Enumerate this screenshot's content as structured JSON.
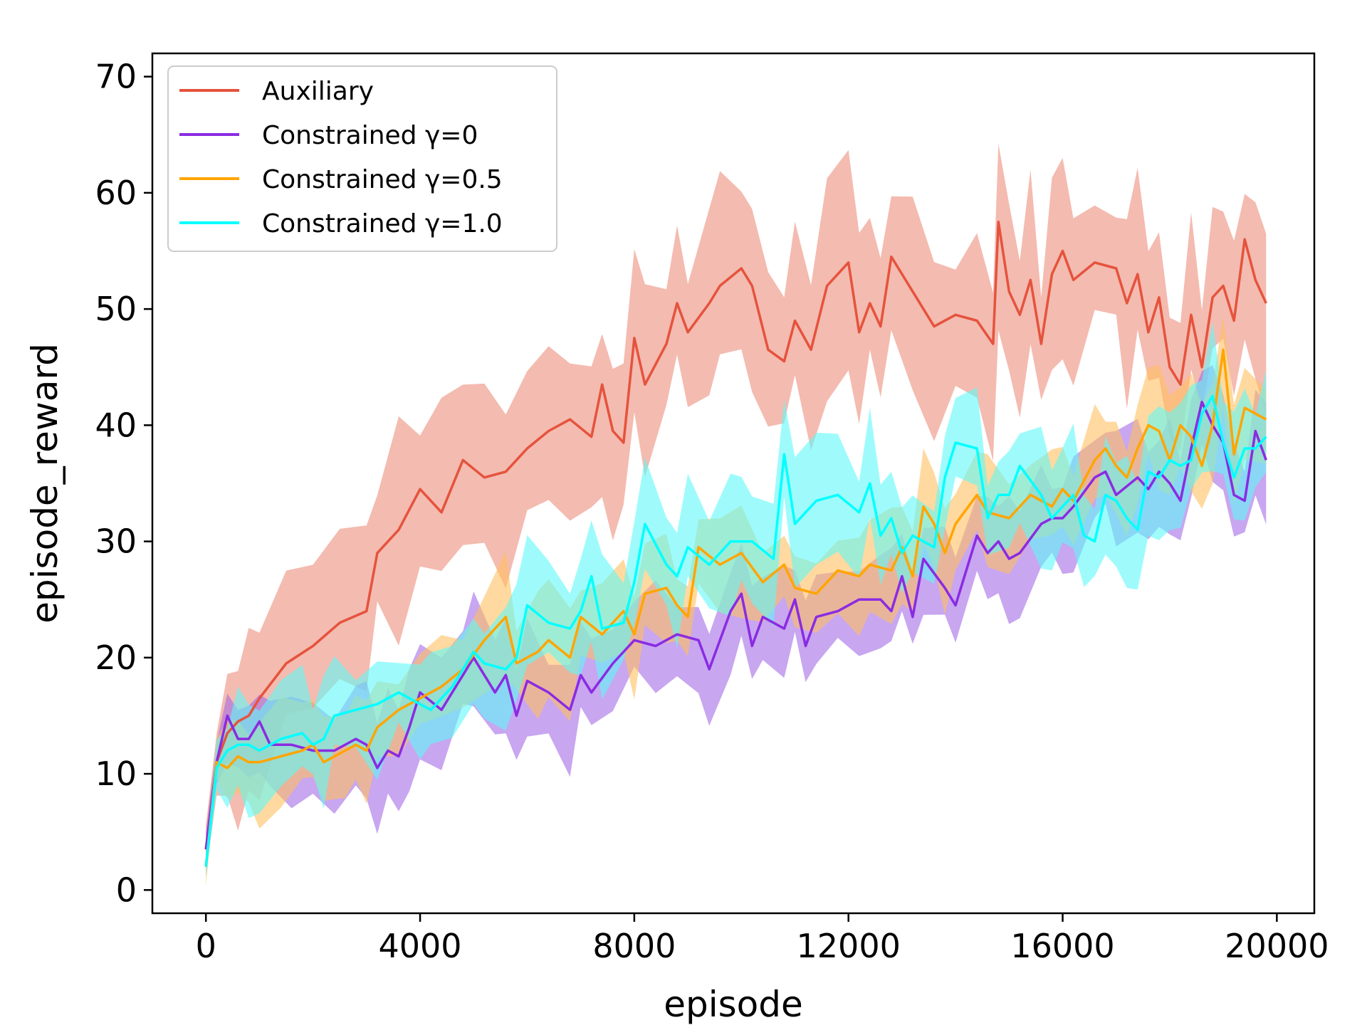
{
  "chart_data": {
    "type": "line",
    "title": "",
    "xlabel": "episode",
    "ylabel": "episode_reward",
    "xlim": [
      -1000,
      20700
    ],
    "ylim": [
      -2,
      72
    ],
    "xticks": [
      0,
      4000,
      8000,
      12000,
      16000,
      20000
    ],
    "yticks": [
      0,
      10,
      20,
      30,
      40,
      50,
      60,
      70
    ],
    "grid": false,
    "legend_position": "top-left",
    "series": [
      {
        "name": "Auxiliary",
        "color": "#e5533d",
        "band_color": "#ec8e7c",
        "anchors": [
          [
            0,
            3.5
          ],
          [
            200,
            11
          ],
          [
            400,
            13.5
          ],
          [
            600,
            14.5
          ],
          [
            800,
            15
          ],
          [
            1000,
            16.5
          ],
          [
            1500,
            19.5
          ],
          [
            2000,
            21
          ],
          [
            2500,
            23
          ],
          [
            3000,
            24
          ],
          [
            3200,
            29
          ],
          [
            3600,
            31
          ],
          [
            4000,
            34.5
          ],
          [
            4400,
            32.5
          ],
          [
            4800,
            37
          ],
          [
            5200,
            35.5
          ],
          [
            5600,
            36
          ],
          [
            6000,
            38
          ],
          [
            6400,
            39.5
          ],
          [
            6800,
            40.5
          ],
          [
            7200,
            39
          ],
          [
            7400,
            43.5
          ],
          [
            7600,
            39.5
          ],
          [
            7800,
            38.5
          ],
          [
            8000,
            47.5
          ],
          [
            8200,
            43.5
          ],
          [
            8600,
            47
          ],
          [
            8800,
            50.5
          ],
          [
            9000,
            48
          ],
          [
            9400,
            50.5
          ],
          [
            9600,
            52
          ],
          [
            10000,
            53.5
          ],
          [
            10200,
            52
          ],
          [
            10500,
            46.5
          ],
          [
            10800,
            45.5
          ],
          [
            11000,
            49
          ],
          [
            11300,
            46.5
          ],
          [
            11600,
            52
          ],
          [
            12000,
            54
          ],
          [
            12200,
            48
          ],
          [
            12400,
            50.5
          ],
          [
            12600,
            48.5
          ],
          [
            12800,
            54.5
          ],
          [
            13200,
            51.5
          ],
          [
            13600,
            48.5
          ],
          [
            14000,
            49.5
          ],
          [
            14400,
            49
          ],
          [
            14700,
            47
          ],
          [
            14800,
            57.5
          ],
          [
            15000,
            51.5
          ],
          [
            15200,
            49.5
          ],
          [
            15400,
            52.5
          ],
          [
            15600,
            47
          ],
          [
            15800,
            53
          ],
          [
            16000,
            55
          ],
          [
            16200,
            52.5
          ],
          [
            16600,
            54
          ],
          [
            17000,
            53.5
          ],
          [
            17200,
            50.5
          ],
          [
            17400,
            53
          ],
          [
            17600,
            48
          ],
          [
            17800,
            51
          ],
          [
            18000,
            45
          ],
          [
            18200,
            43.5
          ],
          [
            18400,
            49.5
          ],
          [
            18600,
            45
          ],
          [
            18800,
            51
          ],
          [
            19000,
            52
          ],
          [
            19200,
            49
          ],
          [
            19400,
            56
          ],
          [
            19600,
            52.5
          ],
          [
            19800,
            50.5
          ]
        ],
        "band": 7
      },
      {
        "name": "Constrained γ=0",
        "color": "#8a2be2",
        "band_color": "#a46be6",
        "anchors": [
          [
            0,
            3.5
          ],
          [
            200,
            11
          ],
          [
            400,
            15
          ],
          [
            600,
            13
          ],
          [
            800,
            13
          ],
          [
            1000,
            14.5
          ],
          [
            1200,
            12.5
          ],
          [
            1600,
            12.5
          ],
          [
            2000,
            12
          ],
          [
            2400,
            12
          ],
          [
            2800,
            13
          ],
          [
            3000,
            12.5
          ],
          [
            3200,
            10.5
          ],
          [
            3400,
            12
          ],
          [
            3600,
            11.5
          ],
          [
            3800,
            14
          ],
          [
            4000,
            17
          ],
          [
            4400,
            15.5
          ],
          [
            4800,
            18.5
          ],
          [
            5000,
            20
          ],
          [
            5400,
            17
          ],
          [
            5600,
            18.5
          ],
          [
            5800,
            15
          ],
          [
            6000,
            18
          ],
          [
            6400,
            17
          ],
          [
            6800,
            15.5
          ],
          [
            7000,
            18.5
          ],
          [
            7200,
            17
          ],
          [
            7600,
            19.5
          ],
          [
            8000,
            21.5
          ],
          [
            8400,
            21
          ],
          [
            8800,
            22
          ],
          [
            9200,
            21.5
          ],
          [
            9400,
            19
          ],
          [
            9800,
            24
          ],
          [
            10000,
            25.5
          ],
          [
            10200,
            21
          ],
          [
            10400,
            23.5
          ],
          [
            10800,
            22.5
          ],
          [
            11000,
            25
          ],
          [
            11200,
            21
          ],
          [
            11400,
            23.5
          ],
          [
            11800,
            24
          ],
          [
            12200,
            25
          ],
          [
            12600,
            25
          ],
          [
            12800,
            24
          ],
          [
            13000,
            27
          ],
          [
            13200,
            23.5
          ],
          [
            13400,
            28.5
          ],
          [
            13800,
            26
          ],
          [
            14000,
            24.5
          ],
          [
            14400,
            30.5
          ],
          [
            14600,
            29
          ],
          [
            14800,
            30
          ],
          [
            15000,
            28.5
          ],
          [
            15200,
            29
          ],
          [
            15600,
            31.5
          ],
          [
            15800,
            32
          ],
          [
            16000,
            32
          ],
          [
            16200,
            33
          ],
          [
            16600,
            35.5
          ],
          [
            16800,
            36
          ],
          [
            17000,
            34
          ],
          [
            17400,
            35.5
          ],
          [
            17600,
            34.5
          ],
          [
            17800,
            36
          ],
          [
            18000,
            35
          ],
          [
            18200,
            33.5
          ],
          [
            18400,
            38
          ],
          [
            18600,
            42
          ],
          [
            18800,
            40
          ],
          [
            19000,
            38.5
          ],
          [
            19200,
            34
          ],
          [
            19400,
            33.5
          ],
          [
            19600,
            39.5
          ],
          [
            19800,
            37
          ]
        ],
        "band": 4
      },
      {
        "name": "Constrained γ=0.5",
        "color": "#ffa500",
        "band_color": "#ffc060",
        "anchors": [
          [
            0,
            2
          ],
          [
            200,
            11
          ],
          [
            400,
            10.5
          ],
          [
            600,
            11.5
          ],
          [
            800,
            11
          ],
          [
            1000,
            11
          ],
          [
            1400,
            11.5
          ],
          [
            1800,
            12
          ],
          [
            2000,
            12.5
          ],
          [
            2200,
            11
          ],
          [
            2600,
            12
          ],
          [
            2800,
            12.5
          ],
          [
            3000,
            12
          ],
          [
            3200,
            14
          ],
          [
            3600,
            15.5
          ],
          [
            4000,
            16.5
          ],
          [
            4400,
            17.5
          ],
          [
            4800,
            19
          ],
          [
            5200,
            21.5
          ],
          [
            5600,
            23.5
          ],
          [
            5800,
            19.5
          ],
          [
            6200,
            20.5
          ],
          [
            6400,
            21.5
          ],
          [
            6800,
            20
          ],
          [
            7000,
            23.5
          ],
          [
            7400,
            22
          ],
          [
            7800,
            24
          ],
          [
            8000,
            22
          ],
          [
            8200,
            25.5
          ],
          [
            8600,
            26
          ],
          [
            8800,
            24.5
          ],
          [
            9000,
            23.5
          ],
          [
            9200,
            29.5
          ],
          [
            9600,
            28
          ],
          [
            10000,
            29
          ],
          [
            10400,
            26.5
          ],
          [
            10800,
            28
          ],
          [
            11000,
            26
          ],
          [
            11400,
            25.5
          ],
          [
            11800,
            27.5
          ],
          [
            12200,
            27
          ],
          [
            12400,
            28
          ],
          [
            12800,
            27.5
          ],
          [
            13000,
            29.5
          ],
          [
            13200,
            27
          ],
          [
            13400,
            33
          ],
          [
            13600,
            31.5
          ],
          [
            13800,
            29
          ],
          [
            14000,
            31.5
          ],
          [
            14400,
            34
          ],
          [
            14600,
            32.5
          ],
          [
            15000,
            32
          ],
          [
            15400,
            34
          ],
          [
            15800,
            33
          ],
          [
            16000,
            34.5
          ],
          [
            16200,
            33.5
          ],
          [
            16600,
            37
          ],
          [
            16800,
            38
          ],
          [
            17000,
            36.5
          ],
          [
            17200,
            35.5
          ],
          [
            17400,
            38
          ],
          [
            17600,
            40
          ],
          [
            17800,
            39.5
          ],
          [
            18000,
            37
          ],
          [
            18200,
            40
          ],
          [
            18400,
            39
          ],
          [
            18600,
            36.5
          ],
          [
            18800,
            40
          ],
          [
            19000,
            46.5
          ],
          [
            19200,
            37.5
          ],
          [
            19400,
            41.5
          ],
          [
            19800,
            40.5
          ]
        ],
        "band": 4
      },
      {
        "name": "Constrained γ=1.0",
        "color": "#00ffff",
        "band_color": "#5ff8f8",
        "anchors": [
          [
            0,
            2
          ],
          [
            200,
            10.5
          ],
          [
            400,
            12
          ],
          [
            600,
            12.5
          ],
          [
            800,
            12.5
          ],
          [
            1000,
            12
          ],
          [
            1400,
            13
          ],
          [
            1800,
            13.5
          ],
          [
            2000,
            12.5
          ],
          [
            2200,
            13
          ],
          [
            2400,
            15
          ],
          [
            2800,
            15.5
          ],
          [
            3200,
            16
          ],
          [
            3600,
            17
          ],
          [
            4000,
            16
          ],
          [
            4200,
            15.5
          ],
          [
            4600,
            17.5
          ],
          [
            5000,
            20.5
          ],
          [
            5200,
            19.5
          ],
          [
            5600,
            19
          ],
          [
            5800,
            20
          ],
          [
            6000,
            24.5
          ],
          [
            6400,
            23
          ],
          [
            6800,
            22.5
          ],
          [
            7000,
            24
          ],
          [
            7200,
            27
          ],
          [
            7400,
            22.5
          ],
          [
            7800,
            23
          ],
          [
            8000,
            26.5
          ],
          [
            8200,
            31.5
          ],
          [
            8600,
            28
          ],
          [
            8800,
            27
          ],
          [
            9000,
            29.5
          ],
          [
            9400,
            28
          ],
          [
            9800,
            30
          ],
          [
            10000,
            30
          ],
          [
            10200,
            30
          ],
          [
            10600,
            28.5
          ],
          [
            10800,
            37.5
          ],
          [
            11000,
            31.5
          ],
          [
            11400,
            33.5
          ],
          [
            11800,
            34
          ],
          [
            12200,
            32.5
          ],
          [
            12400,
            35
          ],
          [
            12600,
            30.5
          ],
          [
            12800,
            32
          ],
          [
            13000,
            29
          ],
          [
            13200,
            30.5
          ],
          [
            13600,
            29.5
          ],
          [
            13800,
            35.5
          ],
          [
            14000,
            38.5
          ],
          [
            14400,
            38
          ],
          [
            14600,
            32
          ],
          [
            14800,
            34
          ],
          [
            15000,
            34
          ],
          [
            15200,
            36.5
          ],
          [
            15600,
            34
          ],
          [
            15800,
            32
          ],
          [
            16000,
            33
          ],
          [
            16200,
            34
          ],
          [
            16400,
            30.5
          ],
          [
            16600,
            30
          ],
          [
            16800,
            34
          ],
          [
            17000,
            33.5
          ],
          [
            17200,
            32
          ],
          [
            17400,
            31
          ],
          [
            17600,
            36
          ],
          [
            17800,
            35.5
          ],
          [
            18000,
            37
          ],
          [
            18200,
            36.5
          ],
          [
            18400,
            37
          ],
          [
            18600,
            41
          ],
          [
            18800,
            42.5
          ],
          [
            19000,
            38.5
          ],
          [
            19200,
            35.5
          ],
          [
            19400,
            38
          ],
          [
            19600,
            38
          ],
          [
            19800,
            39
          ]
        ],
        "band": 4.5
      }
    ]
  }
}
